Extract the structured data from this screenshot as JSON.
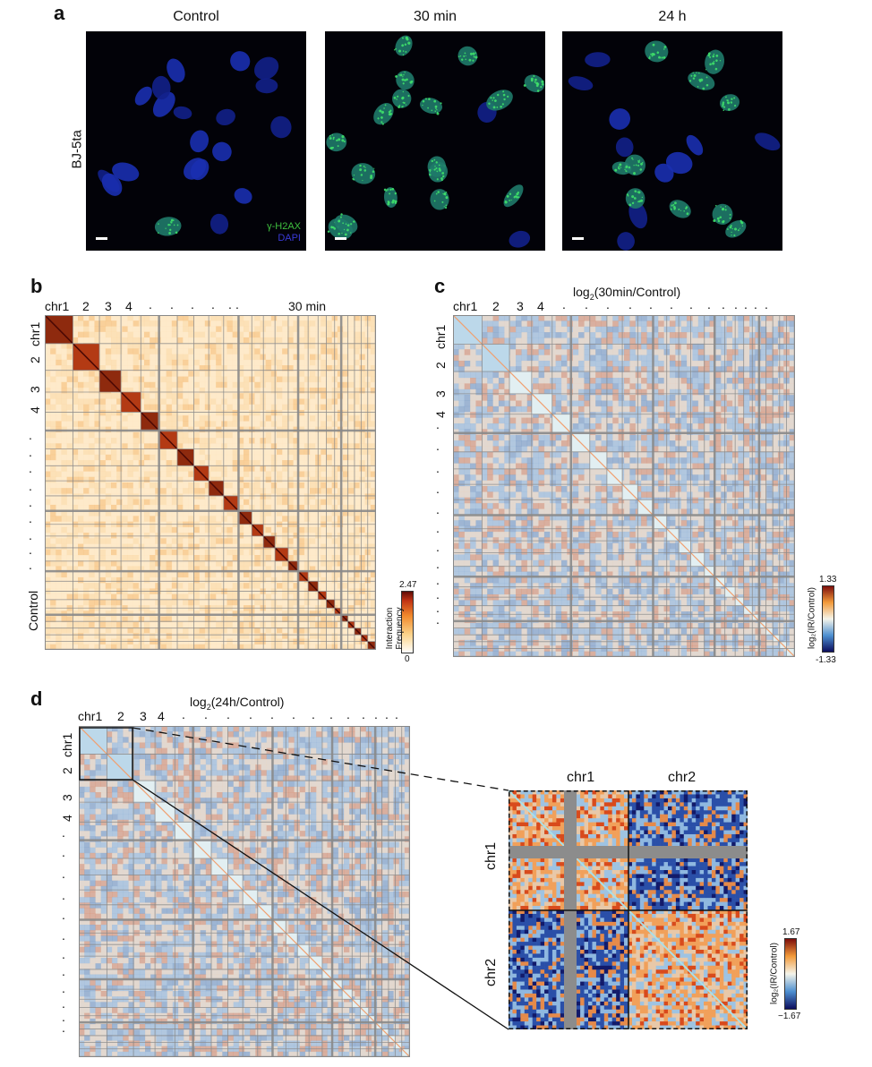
{
  "panels": {
    "a": "a",
    "b": "b",
    "c": "c",
    "d": "d"
  },
  "panel_a": {
    "row_label": "BJ-5ta",
    "conditions": [
      "Control",
      "30 min",
      "24 h"
    ],
    "legend_gh2ax": "γ-H2AX",
    "legend_dapi": "DAPI",
    "colors": {
      "nucleus": "#1a2fb0",
      "foci": "#2fd35a",
      "background": "#020208"
    }
  },
  "panel_b": {
    "top_label": "30 min",
    "side_label": "Control",
    "top_chroms": [
      "chr1",
      "2",
      "3",
      "4"
    ],
    "side_chroms": [
      "chr1",
      "2",
      "3",
      "4"
    ],
    "colorbar": {
      "max": "2.47",
      "min": "0",
      "title_line1": "Interaction",
      "title_line2": "Frequency"
    },
    "colors": {
      "low": "#fff7e6",
      "mid": "#f4a64a",
      "high": "#8a1a0a",
      "grid": "#9a9a9a"
    }
  },
  "panel_c": {
    "title_main": "log",
    "title_sub": "2",
    "title_rest": "(30min/Control)",
    "top_chroms": [
      "chr1",
      "2",
      "3",
      "4"
    ],
    "side_chroms": [
      "chr1",
      "2",
      "3",
      "4"
    ],
    "colorbar": {
      "max": "1.33",
      "min": "-1.33",
      "title": "log₂(IR/Control)"
    },
    "colors": {
      "neg": "#1b2d8f",
      "zero": "#f4f4e8",
      "pos": "#b8201a"
    }
  },
  "panel_d": {
    "title_main": "log",
    "title_sub": "2",
    "title_rest": "(24h/Control)",
    "top_chroms": [
      "chr1",
      "2",
      "3",
      "4"
    ],
    "side_chroms": [
      "chr1",
      "2",
      "3",
      "4"
    ],
    "zoom_top": [
      "chr1",
      "chr2"
    ],
    "zoom_side": [
      "chr1",
      "chr2"
    ],
    "colorbar": {
      "max": "1.67",
      "min": "−1.67",
      "title": "log₂(IR/Control)"
    }
  }
}
